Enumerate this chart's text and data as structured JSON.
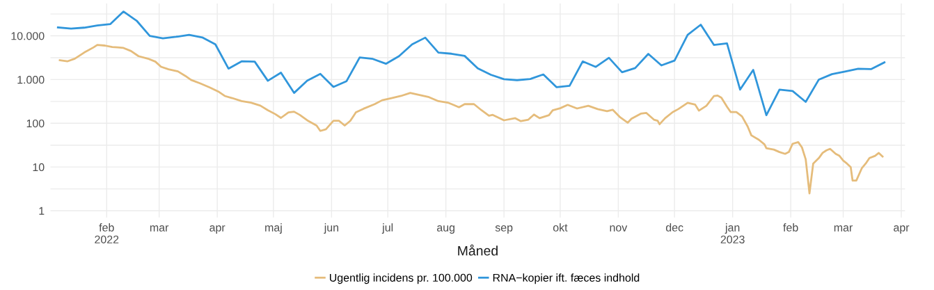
{
  "chart_data": {
    "type": "line",
    "xlabel": "Måned",
    "log": "y",
    "grid": true,
    "legend": "bottom",
    "marker": "none",
    "line_style": "solid",
    "xlim": [
      "2022-01-02",
      "2023-04-03"
    ],
    "xticks": [
      {
        "value": "2022-02-01",
        "label": "feb\n2022"
      },
      {
        "value": "2022-03-01",
        "label": "mar"
      },
      {
        "value": "2022-04-01",
        "label": "apr"
      },
      {
        "value": "2022-05-01",
        "label": "maj"
      },
      {
        "value": "2022-06-01",
        "label": "jun"
      },
      {
        "value": "2022-07-01",
        "label": "jul"
      },
      {
        "value": "2022-08-01",
        "label": "aug"
      },
      {
        "value": "2022-09-01",
        "label": "sep"
      },
      {
        "value": "2022-10-01",
        "label": "okt"
      },
      {
        "value": "2022-11-01",
        "label": "nov"
      },
      {
        "value": "2022-12-01",
        "label": "dec"
      },
      {
        "value": "2023-01-01",
        "label": "jan\n2023"
      },
      {
        "value": "2023-02-01",
        "label": "feb"
      },
      {
        "value": "2023-03-01",
        "label": "mar"
      },
      {
        "value": "2023-04-01",
        "label": "apr"
      }
    ],
    "ylim": [
      0.7,
      55000
    ],
    "yticks": [
      {
        "value": 1,
        "label": "1"
      },
      {
        "value": 3.16,
        "label": null
      },
      {
        "value": 10,
        "label": "10"
      },
      {
        "value": 31.6,
        "label": null
      },
      {
        "value": 100,
        "label": "100"
      },
      {
        "value": 316,
        "label": null
      },
      {
        "value": 1000,
        "label": "1.000"
      },
      {
        "value": 3160,
        "label": null
      },
      {
        "value": 10000,
        "label": "10.000"
      },
      {
        "value": 31600,
        "label": null
      }
    ],
    "series": [
      {
        "name": "Ugentlig incidens pr. 100.000",
        "color": "#e5bc7b",
        "x": [
          "2022-01-07",
          "2022-01-11",
          "2022-01-15",
          "2022-01-20",
          "2022-01-25",
          "2022-01-27",
          "2022-01-31",
          "2022-02-04",
          "2022-02-07",
          "2022-02-10",
          "2022-02-14",
          "2022-02-18",
          "2022-02-23",
          "2022-02-27",
          "2022-03-02",
          "2022-03-06",
          "2022-03-11",
          "2022-03-15",
          "2022-03-18",
          "2022-03-23",
          "2022-03-28",
          "2022-04-02",
          "2022-04-05",
          "2022-04-09",
          "2022-04-14",
          "2022-04-19",
          "2022-04-24",
          "2022-04-28",
          "2022-05-02",
          "2022-05-05",
          "2022-05-09",
          "2022-05-12",
          "2022-05-15",
          "2022-05-19",
          "2022-05-24",
          "2022-05-26",
          "2022-05-29",
          "2022-06-02",
          "2022-06-05",
          "2022-06-08",
          "2022-06-11",
          "2022-06-14",
          "2022-06-18",
          "2022-06-24",
          "2022-06-28",
          "2022-07-03",
          "2022-07-08",
          "2022-07-13",
          "2022-07-18",
          "2022-07-23",
          "2022-07-28",
          "2022-08-02",
          "2022-08-05",
          "2022-08-08",
          "2022-08-11",
          "2022-08-16",
          "2022-08-20",
          "2022-08-24",
          "2022-08-26",
          "2022-09-01",
          "2022-09-07",
          "2022-09-10",
          "2022-09-14",
          "2022-09-17",
          "2022-09-20",
          "2022-09-25",
          "2022-09-27",
          "2022-10-01",
          "2022-10-05",
          "2022-10-10",
          "2022-10-16",
          "2022-10-21",
          "2022-10-26",
          "2022-10-29",
          "2022-11-02",
          "2022-11-06",
          "2022-11-08",
          "2022-11-13",
          "2022-11-16",
          "2022-11-20",
          "2022-11-22",
          "2022-11-23",
          "2022-11-26",
          "2022-11-30",
          "2022-12-03",
          "2022-12-08",
          "2022-12-12",
          "2022-12-14",
          "2022-12-18",
          "2022-12-22",
          "2022-12-24",
          "2022-12-26",
          "2022-12-29",
          "2022-12-31",
          "2023-01-03",
          "2023-01-06",
          "2023-01-09",
          "2023-01-11",
          "2023-01-15",
          "2023-01-18",
          "2023-01-19",
          "2023-01-23",
          "2023-01-26",
          "2023-01-29",
          "2023-01-31",
          "2023-02-02",
          "2023-02-05",
          "2023-02-07",
          "2023-02-09",
          "2023-02-11",
          "2023-02-13",
          "2023-02-16",
          "2023-02-18",
          "2023-02-20",
          "2023-02-22",
          "2023-02-25",
          "2023-02-27",
          "2023-03-01",
          "2023-03-03",
          "2023-03-05",
          "2023-03-06",
          "2023-03-08",
          "2023-03-11",
          "2023-03-13",
          "2023-03-15",
          "2023-03-18",
          "2023-03-20",
          "2023-03-22"
        ],
        "values": [
          2780,
          2610,
          3010,
          4150,
          5450,
          6190,
          6000,
          5540,
          5450,
          5280,
          4500,
          3430,
          3010,
          2570,
          1960,
          1720,
          1540,
          1210,
          984,
          813,
          660,
          519,
          422,
          377,
          321,
          297,
          253,
          199,
          162,
          133,
          178,
          184,
          156,
          117,
          89,
          67,
          73,
          114,
          114,
          89,
          114,
          178,
          215,
          274,
          337,
          377,
          422,
          494,
          442,
          396,
          321,
          297,
          265,
          233,
          274,
          274,
          199,
          149,
          156,
          117,
          131,
          112,
          121,
          158,
          131,
          153,
          198,
          221,
          264,
          218,
          251,
          211,
          189,
          204,
          137,
          103,
          127,
          166,
          172,
          121,
          114,
          95,
          131,
          180,
          211,
          294,
          268,
          195,
          251,
          418,
          431,
          385,
          239,
          180,
          180,
          144,
          85,
          53,
          42,
          33,
          27,
          25,
          22,
          20,
          22,
          34,
          37,
          28,
          15,
          2.5,
          12,
          16,
          21,
          24,
          26,
          20,
          18,
          14,
          12,
          10,
          4.9,
          4.9,
          9.5,
          12,
          16,
          18,
          21,
          17.4
        ]
      },
      {
        "name": "RNA−kopier ift. fæces indhold",
        "color": "#3096db",
        "x": [
          "2022-01-06",
          "2022-01-13",
          "2022-01-20",
          "2022-01-27",
          "2022-02-03",
          "2022-02-10",
          "2022-02-17",
          "2022-02-24",
          "2022-03-03",
          "2022-03-10",
          "2022-03-17",
          "2022-03-24",
          "2022-03-31",
          "2022-04-07",
          "2022-04-14",
          "2022-04-21",
          "2022-04-28",
          "2022-05-05",
          "2022-05-12",
          "2022-05-19",
          "2022-05-26",
          "2022-06-02",
          "2022-06-09",
          "2022-06-16",
          "2022-06-23",
          "2022-06-30",
          "2022-07-07",
          "2022-07-14",
          "2022-07-21",
          "2022-07-28",
          "2022-08-04",
          "2022-08-11",
          "2022-08-18",
          "2022-08-25",
          "2022-09-01",
          "2022-09-08",
          "2022-09-15",
          "2022-09-22",
          "2022-09-29",
          "2022-10-06",
          "2022-10-13",
          "2022-10-20",
          "2022-10-27",
          "2022-11-03",
          "2022-11-10",
          "2022-11-17",
          "2022-11-24",
          "2022-12-01",
          "2022-12-08",
          "2022-12-15",
          "2022-12-22",
          "2022-12-29",
          "2023-01-05",
          "2023-01-12",
          "2023-01-19",
          "2023-01-26",
          "2023-02-02",
          "2023-02-09",
          "2023-02-16",
          "2023-02-23",
          "2023-03-02",
          "2023-03-09",
          "2023-03-16",
          "2023-03-23"
        ],
        "values": [
          15600,
          14700,
          15400,
          17200,
          18600,
          36000,
          22200,
          10000,
          8800,
          9500,
          10500,
          9200,
          6400,
          1780,
          2610,
          2570,
          940,
          1440,
          495,
          940,
          1350,
          680,
          920,
          3200,
          2970,
          2300,
          3430,
          6400,
          9100,
          4150,
          3900,
          3480,
          1810,
          1290,
          1020,
          970,
          1030,
          1310,
          670,
          720,
          2600,
          1950,
          3140,
          1470,
          1830,
          3860,
          2110,
          2720,
          10500,
          18000,
          6210,
          6720,
          590,
          1660,
          153,
          590,
          547,
          309,
          1000,
          1330,
          1530,
          1770,
          1740,
          2470
        ]
      }
    ]
  }
}
